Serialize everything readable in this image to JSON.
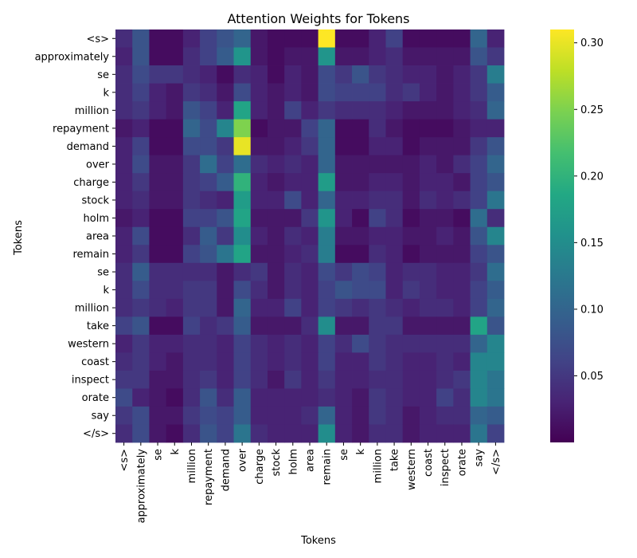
{
  "chart_data": {
    "type": "heatmap",
    "title": "Attention Weights for Tokens",
    "xlabel": "Tokens",
    "ylabel": "Tokens",
    "x_tokens": [
      "<s>",
      "approximately",
      "se",
      "k",
      "million",
      "repayment",
      "demand",
      "over",
      "charge",
      "stock",
      "holm",
      "area",
      "remain",
      "se",
      "k",
      "million",
      "take",
      "western",
      "coast",
      "inspect",
      "orate",
      "say",
      "</s>"
    ],
    "y_tokens": [
      "<s>",
      "approximately",
      "se",
      "k",
      "million",
      "repayment",
      "demand",
      "over",
      "charge",
      "stock",
      "holm",
      "area",
      "remain",
      "se",
      "k",
      "million",
      "take",
      "western",
      "coast",
      "inspect",
      "orate",
      "say",
      "</s>"
    ],
    "values": [
      [
        0.04,
        0.08,
        0.01,
        0.01,
        0.03,
        0.06,
        0.08,
        0.1,
        0.02,
        0.01,
        0.01,
        0.01,
        0.31,
        0.01,
        0.01,
        0.03,
        0.06,
        0.01,
        0.01,
        0.01,
        0.01,
        0.1,
        0.03
      ],
      [
        0.03,
        0.08,
        0.01,
        0.01,
        0.04,
        0.06,
        0.09,
        0.16,
        0.02,
        0.01,
        0.02,
        0.02,
        0.16,
        0.02,
        0.02,
        0.03,
        0.04,
        0.02,
        0.02,
        0.02,
        0.02,
        0.08,
        0.05
      ],
      [
        0.04,
        0.07,
        0.05,
        0.05,
        0.04,
        0.03,
        0.01,
        0.04,
        0.03,
        0.01,
        0.03,
        0.02,
        0.07,
        0.05,
        0.08,
        0.05,
        0.04,
        0.03,
        0.03,
        0.02,
        0.03,
        0.05,
        0.13
      ],
      [
        0.04,
        0.06,
        0.03,
        0.02,
        0.05,
        0.04,
        0.02,
        0.07,
        0.03,
        0.02,
        0.03,
        0.02,
        0.07,
        0.06,
        0.06,
        0.06,
        0.04,
        0.05,
        0.03,
        0.02,
        0.03,
        0.05,
        0.09
      ],
      [
        0.04,
        0.05,
        0.03,
        0.02,
        0.08,
        0.06,
        0.03,
        0.18,
        0.03,
        0.02,
        0.06,
        0.03,
        0.05,
        0.04,
        0.04,
        0.04,
        0.03,
        0.02,
        0.02,
        0.02,
        0.03,
        0.04,
        0.1
      ],
      [
        0.02,
        0.03,
        0.01,
        0.01,
        0.1,
        0.07,
        0.14,
        0.25,
        0.01,
        0.02,
        0.02,
        0.06,
        0.1,
        0.01,
        0.01,
        0.04,
        0.02,
        0.01,
        0.01,
        0.01,
        0.02,
        0.03,
        0.03
      ],
      [
        0.03,
        0.06,
        0.01,
        0.01,
        0.07,
        0.07,
        0.05,
        0.3,
        0.02,
        0.02,
        0.03,
        0.05,
        0.1,
        0.01,
        0.01,
        0.03,
        0.03,
        0.01,
        0.02,
        0.02,
        0.02,
        0.05,
        0.08
      ],
      [
        0.03,
        0.07,
        0.02,
        0.02,
        0.05,
        0.11,
        0.06,
        0.11,
        0.04,
        0.03,
        0.04,
        0.03,
        0.1,
        0.02,
        0.02,
        0.02,
        0.02,
        0.02,
        0.03,
        0.02,
        0.04,
        0.06,
        0.1
      ],
      [
        0.03,
        0.05,
        0.02,
        0.02,
        0.05,
        0.06,
        0.09,
        0.2,
        0.03,
        0.02,
        0.03,
        0.03,
        0.17,
        0.02,
        0.02,
        0.03,
        0.03,
        0.02,
        0.03,
        0.03,
        0.02,
        0.06,
        0.08
      ],
      [
        0.03,
        0.04,
        0.02,
        0.02,
        0.05,
        0.04,
        0.03,
        0.17,
        0.03,
        0.03,
        0.07,
        0.03,
        0.1,
        0.03,
        0.03,
        0.04,
        0.04,
        0.02,
        0.04,
        0.03,
        0.04,
        0.06,
        0.12
      ],
      [
        0.02,
        0.03,
        0.01,
        0.01,
        0.06,
        0.06,
        0.08,
        0.18,
        0.02,
        0.02,
        0.02,
        0.05,
        0.16,
        0.03,
        0.01,
        0.06,
        0.04,
        0.01,
        0.02,
        0.02,
        0.01,
        0.11,
        0.04
      ],
      [
        0.03,
        0.07,
        0.01,
        0.01,
        0.04,
        0.09,
        0.05,
        0.15,
        0.03,
        0.02,
        0.04,
        0.03,
        0.13,
        0.02,
        0.02,
        0.03,
        0.03,
        0.02,
        0.02,
        0.03,
        0.02,
        0.08,
        0.14
      ],
      [
        0.03,
        0.05,
        0.01,
        0.01,
        0.06,
        0.08,
        0.12,
        0.18,
        0.02,
        0.02,
        0.03,
        0.04,
        0.13,
        0.01,
        0.01,
        0.04,
        0.03,
        0.01,
        0.02,
        0.02,
        0.02,
        0.06,
        0.08
      ],
      [
        0.04,
        0.09,
        0.04,
        0.04,
        0.04,
        0.04,
        0.02,
        0.04,
        0.05,
        0.02,
        0.04,
        0.03,
        0.07,
        0.05,
        0.07,
        0.06,
        0.03,
        0.04,
        0.04,
        0.03,
        0.03,
        0.05,
        0.11
      ],
      [
        0.04,
        0.07,
        0.04,
        0.04,
        0.05,
        0.05,
        0.02,
        0.07,
        0.04,
        0.02,
        0.04,
        0.03,
        0.06,
        0.08,
        0.07,
        0.07,
        0.03,
        0.05,
        0.04,
        0.03,
        0.03,
        0.06,
        0.09
      ],
      [
        0.04,
        0.05,
        0.04,
        0.03,
        0.05,
        0.05,
        0.02,
        0.1,
        0.03,
        0.03,
        0.06,
        0.03,
        0.06,
        0.05,
        0.04,
        0.05,
        0.04,
        0.03,
        0.04,
        0.04,
        0.03,
        0.06,
        0.1
      ],
      [
        0.06,
        0.08,
        0.01,
        0.01,
        0.06,
        0.04,
        0.05,
        0.09,
        0.02,
        0.02,
        0.02,
        0.04,
        0.15,
        0.02,
        0.02,
        0.05,
        0.05,
        0.02,
        0.02,
        0.02,
        0.02,
        0.18,
        0.08
      ],
      [
        0.03,
        0.05,
        0.03,
        0.03,
        0.04,
        0.04,
        0.03,
        0.06,
        0.04,
        0.03,
        0.04,
        0.03,
        0.06,
        0.04,
        0.07,
        0.05,
        0.04,
        0.04,
        0.04,
        0.04,
        0.04,
        0.1,
        0.14
      ],
      [
        0.04,
        0.05,
        0.03,
        0.02,
        0.04,
        0.04,
        0.03,
        0.06,
        0.04,
        0.03,
        0.04,
        0.03,
        0.06,
        0.03,
        0.03,
        0.05,
        0.04,
        0.03,
        0.03,
        0.04,
        0.03,
        0.14,
        0.14
      ],
      [
        0.05,
        0.05,
        0.02,
        0.02,
        0.04,
        0.05,
        0.03,
        0.06,
        0.04,
        0.02,
        0.05,
        0.03,
        0.05,
        0.03,
        0.03,
        0.04,
        0.04,
        0.03,
        0.03,
        0.04,
        0.05,
        0.14,
        0.12
      ],
      [
        0.07,
        0.03,
        0.02,
        0.01,
        0.04,
        0.08,
        0.04,
        0.09,
        0.03,
        0.03,
        0.03,
        0.03,
        0.04,
        0.03,
        0.02,
        0.05,
        0.04,
        0.03,
        0.03,
        0.06,
        0.04,
        0.14,
        0.12
      ],
      [
        0.05,
        0.07,
        0.02,
        0.02,
        0.05,
        0.07,
        0.06,
        0.09,
        0.03,
        0.03,
        0.03,
        0.04,
        0.1,
        0.03,
        0.02,
        0.05,
        0.04,
        0.02,
        0.03,
        0.04,
        0.04,
        0.1,
        0.09
      ],
      [
        0.04,
        0.07,
        0.02,
        0.01,
        0.04,
        0.08,
        0.06,
        0.12,
        0.04,
        0.03,
        0.03,
        0.03,
        0.15,
        0.03,
        0.02,
        0.04,
        0.04,
        0.02,
        0.03,
        0.03,
        0.03,
        0.12,
        0.06
      ]
    ],
    "colorbar": {
      "colormap": "viridis",
      "vmin": 0.0,
      "vmax": 0.31,
      "ticks": [
        0.05,
        0.1,
        0.15,
        0.2,
        0.25,
        0.3
      ],
      "tick_labels": [
        "0.05",
        "0.10",
        "0.15",
        "0.20",
        "0.25",
        "0.30"
      ]
    },
    "grid": false,
    "legend": "none"
  }
}
